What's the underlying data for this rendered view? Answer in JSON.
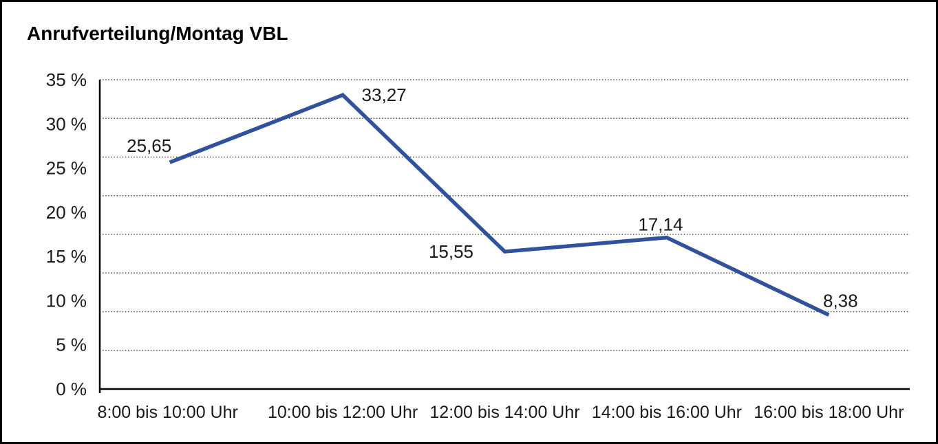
{
  "window": {
    "background_color": "#ffffff",
    "border_color": "#000000"
  },
  "chart": {
    "title": "Anrufverteilung/Montag VBL"
  },
  "chart_data": {
    "type": "line",
    "title": "Anrufverteilung/Montag VBL",
    "categories": [
      "8:00 bis 10:00 Uhr",
      "10:00 bis 12:00 Uhr",
      "12:00 bis 14:00 Uhr",
      "14:00 bis 16:00 Uhr",
      "16:00 bis 18:00 Uhr"
    ],
    "values": [
      25.65,
      33.27,
      15.55,
      17.14,
      8.38
    ],
    "value_labels": [
      "25,65",
      "33,27",
      "15,55",
      "17,14",
      "8,38"
    ],
    "y_tick_labels": [
      "35 %",
      "30 %",
      "25 %",
      "20 %",
      "15 %",
      "10 %",
      "5 %",
      "0 %"
    ],
    "y_tick_values": [
      35,
      30,
      25,
      20,
      15,
      10,
      5,
      0
    ],
    "ylim": [
      0,
      35
    ],
    "xlabel": "",
    "ylabel": "",
    "grid": "dotted-horizontal",
    "horizontal_gridline_count": 9,
    "legend": "none",
    "line_color": "#2f519e",
    "gridline_color": "#4d4d4d",
    "axis_color": "#000000",
    "text_color": "#1a1a1a"
  }
}
